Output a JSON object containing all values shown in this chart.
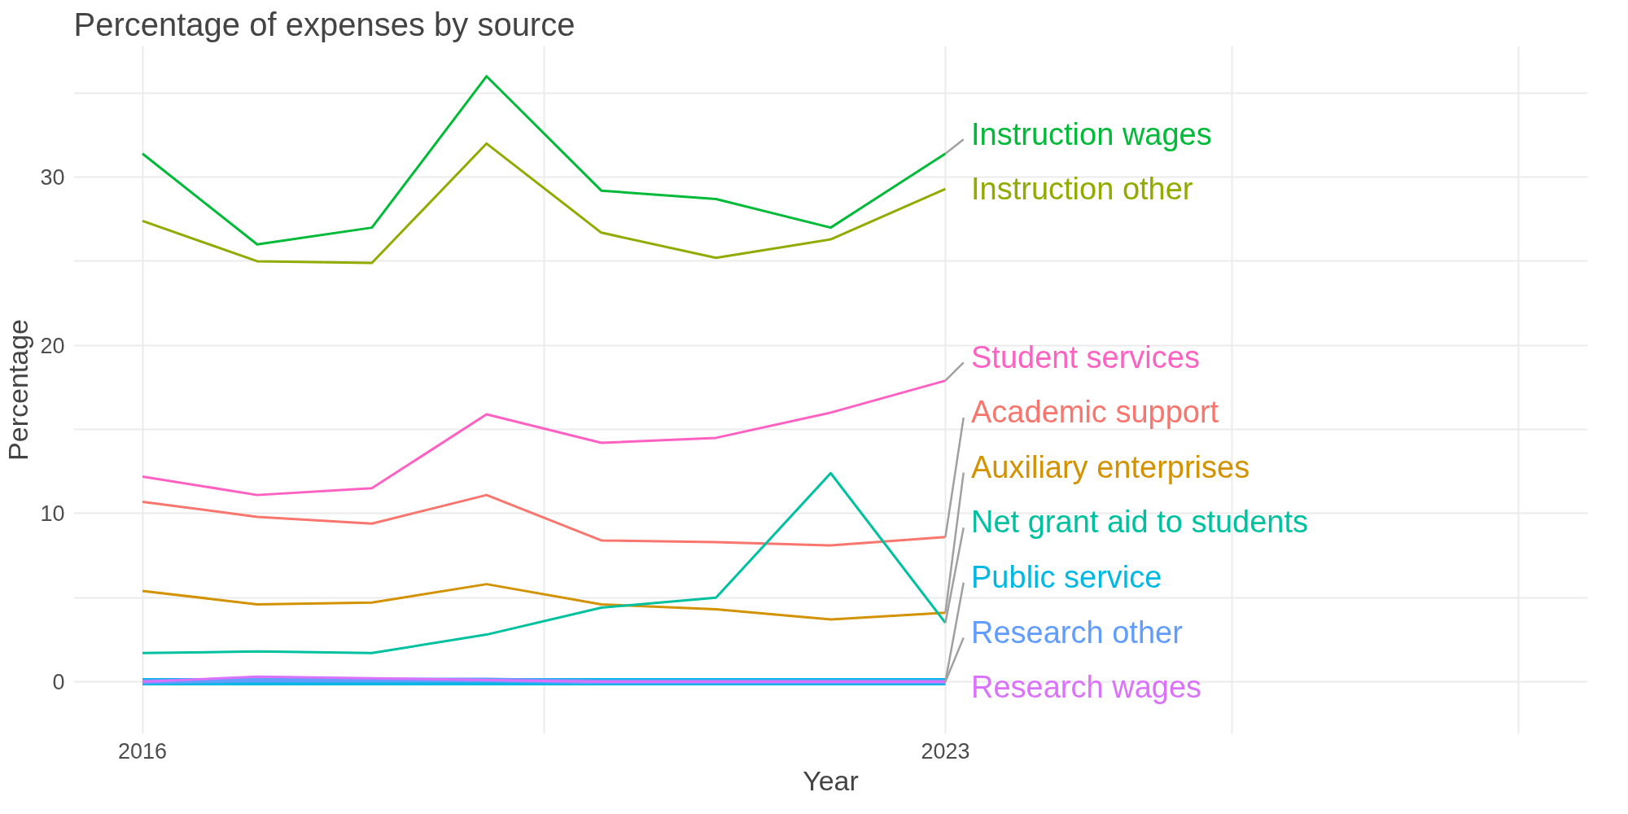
{
  "chart_data": {
    "type": "line",
    "title": "Percentage of expenses by source",
    "xlabel": "Year",
    "ylabel": "Percentage",
    "x": [
      2016,
      2017,
      2018,
      2019,
      2020,
      2021,
      2022,
      2023
    ],
    "xlim": [
      2015.4,
      2028.6
    ],
    "xticks": [
      2016,
      {
        "value": 2019.5,
        "label": null
      },
      2023,
      {
        "value": 2025.5,
        "label": null
      },
      {
        "value": 2028,
        "label": null
      }
    ],
    "ylim": [
      -3.1,
      37.8
    ],
    "yticks": [
      0,
      {
        "value": 5,
        "label": null
      },
      10,
      {
        "value": 15,
        "label": null
      },
      20,
      {
        "value": 25,
        "label": null
      },
      30,
      {
        "value": 35,
        "label": null
      }
    ],
    "grid": true,
    "series": [
      {
        "name": "Academic support",
        "color": "#f8766d",
        "values": [
          10.7,
          9.8,
          9.4,
          11.1,
          8.4,
          8.3,
          8.1,
          8.6
        ]
      },
      {
        "name": "Auxiliary enterprises",
        "color": "#d39200",
        "values": [
          5.4,
          4.6,
          4.7,
          5.8,
          4.6,
          4.3,
          3.7,
          4.1
        ]
      },
      {
        "name": "Instruction other",
        "color": "#93aa00",
        "values": [
          27.4,
          25.0,
          24.9,
          32.0,
          26.7,
          25.2,
          26.3,
          29.3
        ]
      },
      {
        "name": "Instruction wages",
        "color": "#00ba38",
        "values": [
          31.4,
          26.0,
          27.0,
          36.0,
          29.2,
          28.7,
          27.0,
          31.4
        ]
      },
      {
        "name": "Net grant aid to students",
        "color": "#00c19f",
        "values": [
          1.7,
          1.8,
          1.7,
          2.8,
          4.4,
          5.0,
          12.4,
          3.5
        ]
      },
      {
        "name": "Public service",
        "color": "#00b9e3",
        "values": [
          0,
          0,
          0,
          0,
          0,
          0,
          0,
          0
        ]
      },
      {
        "name": "Research other",
        "color": "#619cff",
        "values": [
          0,
          0.1,
          0.1,
          0.1,
          0,
          0,
          0,
          0
        ]
      },
      {
        "name": "Research wages",
        "color": "#db72fb",
        "values": [
          0,
          0.3,
          0.2,
          0.1,
          0,
          0,
          0,
          0
        ]
      },
      {
        "name": "Student services",
        "color": "#ff61c3",
        "values": [
          12.2,
          11.1,
          11.5,
          15.9,
          14.2,
          14.5,
          16.0,
          17.9
        ]
      }
    ]
  }
}
